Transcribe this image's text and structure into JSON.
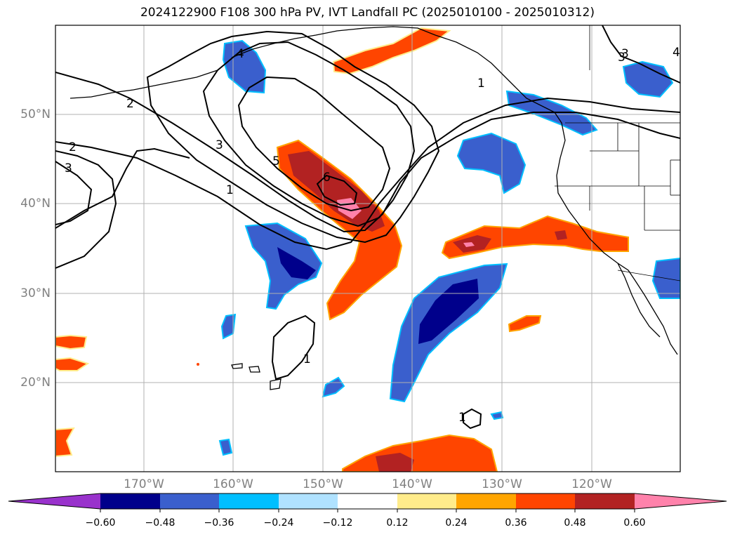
{
  "title": "2024122900 F108 300 hPa PV, IVT Landfall PC (2025010100 - 2025010312)",
  "map": {
    "lat_labels": [
      "50°N",
      "40°N",
      "30°N",
      "20°N"
    ],
    "lon_labels": [
      "170°W",
      "160°W",
      "150°W",
      "140°W",
      "130°W",
      "120°W"
    ],
    "contour_labels": [
      "4",
      "3",
      "2",
      "2",
      "3",
      "3",
      "5",
      "6",
      "1",
      "1",
      "1",
      "1",
      "3",
      "4"
    ]
  },
  "colorbar": {
    "colors": [
      "#9932cc",
      "#00008b",
      "#3a5fcd",
      "#00bfff",
      "#b0e2ff",
      "#ffffff",
      "#ffec8b",
      "#ffa500",
      "#ff4500",
      "#b22222",
      "#ff82ab",
      "#ff82ab"
    ],
    "ticks": [
      "−0.60",
      "−0.48",
      "−0.36",
      "−0.24",
      "−0.12",
      "0.12",
      "0.24",
      "0.36",
      "0.48",
      "0.60"
    ]
  }
}
